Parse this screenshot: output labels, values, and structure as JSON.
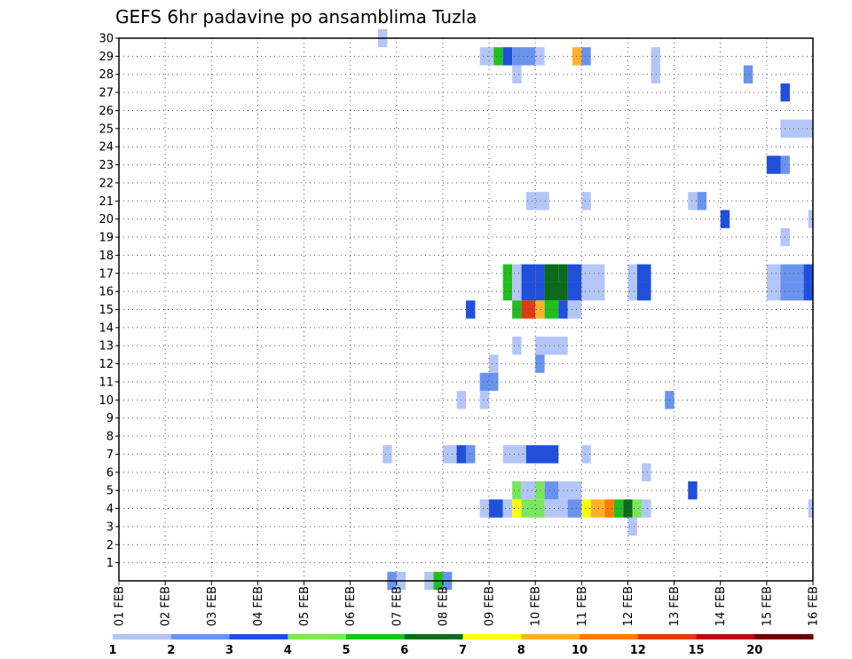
{
  "chart_data": {
    "type": "heatmap",
    "title": "GEFS 6hr padavine po ansamblima Tuzla",
    "xlabel": "",
    "ylabel": "",
    "x_tick_labels": [
      "01 FEB",
      "02 FEB",
      "03 FEB",
      "04 FEB",
      "05 FEB",
      "06 FEB",
      "07 FEB",
      "08 FEB",
      "09 FEB",
      "10 FEB",
      "11 FEB",
      "12 FEB",
      "13 FEB",
      "14 FEB",
      "15 FEB",
      "16 FEB"
    ],
    "x_range_days": [
      1,
      16
    ],
    "y_tick_labels": [
      "1",
      "2",
      "3",
      "4",
      "5",
      "6",
      "7",
      "8",
      "9",
      "10",
      "11",
      "12",
      "13",
      "14",
      "15",
      "16",
      "17",
      "18",
      "19",
      "20",
      "21",
      "22",
      "23",
      "24",
      "25",
      "26",
      "27",
      "28",
      "29",
      "30"
    ],
    "y_range": [
      0,
      30
    ],
    "grid": true,
    "colorbar": {
      "labels": [
        "1",
        "2",
        "3",
        "4",
        "5",
        "6",
        "7",
        "8",
        "10",
        "12",
        "15",
        "20"
      ],
      "colors": [
        "#b3c6f7",
        "#6a93ee",
        "#1f4fdc",
        "#7ae65c",
        "#1fbf1f",
        "#0a6b1a",
        "#ffff00",
        "#ffb12e",
        "#ff7a00",
        "#e03a10",
        "#b20d0d",
        "#6b0000"
      ]
    },
    "cell_duration_hours": 6,
    "cells": [
      {
        "y": 30,
        "t": [
          6.6,
          6.8
        ],
        "c": 0
      },
      {
        "y": 29,
        "t": [
          8.8,
          9.1
        ],
        "c": 0
      },
      {
        "y": 29,
        "t": [
          9.1,
          9.3
        ],
        "c": 4
      },
      {
        "y": 29,
        "t": [
          9.3,
          9.5
        ],
        "c": 2
      },
      {
        "y": 29,
        "t": [
          9.5,
          10.0
        ],
        "c": 1
      },
      {
        "y": 29,
        "t": [
          10.0,
          10.2
        ],
        "c": 0
      },
      {
        "y": 29,
        "t": [
          10.8,
          11.0
        ],
        "c": 7
      },
      {
        "y": 29,
        "t": [
          11.0,
          11.2
        ],
        "c": 1
      },
      {
        "y": 29,
        "t": [
          12.5,
          12.7
        ],
        "c": 0
      },
      {
        "y": 28,
        "t": [
          9.5,
          9.7
        ],
        "c": 0
      },
      {
        "y": 28,
        "t": [
          12.5,
          12.7
        ],
        "c": 0
      },
      {
        "y": 28,
        "t": [
          14.5,
          14.7
        ],
        "c": 1
      },
      {
        "y": 27,
        "t": [
          15.3,
          15.5
        ],
        "c": 2
      },
      {
        "y": 25,
        "t": [
          15.3,
          16.0
        ],
        "c": 0
      },
      {
        "y": 23,
        "t": [
          15.0,
          15.3
        ],
        "c": 2
      },
      {
        "y": 23,
        "t": [
          15.3,
          15.5
        ],
        "c": 1
      },
      {
        "y": 21,
        "t": [
          9.8,
          10.3
        ],
        "c": 0
      },
      {
        "y": 21,
        "t": [
          11.0,
          11.2
        ],
        "c": 0
      },
      {
        "y": 21,
        "t": [
          13.3,
          13.5
        ],
        "c": 0
      },
      {
        "y": 21,
        "t": [
          13.5,
          13.7
        ],
        "c": 1
      },
      {
        "y": 20,
        "t": [
          14.0,
          14.2
        ],
        "c": 2
      },
      {
        "y": 20,
        "t": [
          15.9,
          16.0
        ],
        "c": 0
      },
      {
        "y": 19,
        "t": [
          15.3,
          15.5
        ],
        "c": 0
      },
      {
        "y": 17,
        "t": [
          9.3,
          9.5
        ],
        "c": 4
      },
      {
        "y": 17,
        "t": [
          9.5,
          9.7
        ],
        "c": 0
      },
      {
        "y": 17,
        "t": [
          9.7,
          10.0
        ],
        "c": 2
      },
      {
        "y": 17,
        "t": [
          10.0,
          10.2
        ],
        "c": 2
      },
      {
        "y": 17,
        "t": [
          10.2,
          10.5
        ],
        "c": 5
      },
      {
        "y": 17,
        "t": [
          10.5,
          10.7
        ],
        "c": 5
      },
      {
        "y": 17,
        "t": [
          10.7,
          11.0
        ],
        "c": 2
      },
      {
        "y": 17,
        "t": [
          11.0,
          11.5
        ],
        "c": 0
      },
      {
        "y": 17,
        "t": [
          12.0,
          12.2
        ],
        "c": 0
      },
      {
        "y": 17,
        "t": [
          12.2,
          12.5
        ],
        "c": 2
      },
      {
        "y": 17,
        "t": [
          15.0,
          15.3
        ],
        "c": 0
      },
      {
        "y": 17,
        "t": [
          15.3,
          15.8
        ],
        "c": 1
      },
      {
        "y": 17,
        "t": [
          15.8,
          16.0
        ],
        "c": 2
      },
      {
        "y": 16,
        "t": [
          9.3,
          9.5
        ],
        "c": 4
      },
      {
        "y": 16,
        "t": [
          9.5,
          9.7
        ],
        "c": 0
      },
      {
        "y": 16,
        "t": [
          9.7,
          10.0
        ],
        "c": 2
      },
      {
        "y": 16,
        "t": [
          10.0,
          10.2
        ],
        "c": 2
      },
      {
        "y": 16,
        "t": [
          10.2,
          10.7
        ],
        "c": 5
      },
      {
        "y": 16,
        "t": [
          10.7,
          11.0
        ],
        "c": 2
      },
      {
        "y": 16,
        "t": [
          11.0,
          11.5
        ],
        "c": 0
      },
      {
        "y": 16,
        "t": [
          12.0,
          12.2
        ],
        "c": 0
      },
      {
        "y": 16,
        "t": [
          12.2,
          12.5
        ],
        "c": 2
      },
      {
        "y": 16,
        "t": [
          15.0,
          15.3
        ],
        "c": 0
      },
      {
        "y": 16,
        "t": [
          15.3,
          15.8
        ],
        "c": 1
      },
      {
        "y": 16,
        "t": [
          15.8,
          16.0
        ],
        "c": 2
      },
      {
        "y": 15,
        "t": [
          8.5,
          8.7
        ],
        "c": 2
      },
      {
        "y": 15,
        "t": [
          9.5,
          9.7
        ],
        "c": 4
      },
      {
        "y": 15,
        "t": [
          9.7,
          10.0
        ],
        "c": 9
      },
      {
        "y": 15,
        "t": [
          10.0,
          10.2
        ],
        "c": 7
      },
      {
        "y": 15,
        "t": [
          10.2,
          10.5
        ],
        "c": 4
      },
      {
        "y": 15,
        "t": [
          10.5,
          10.7
        ],
        "c": 2
      },
      {
        "y": 15,
        "t": [
          10.7,
          11.0
        ],
        "c": 0
      },
      {
        "y": 13,
        "t": [
          9.5,
          9.7
        ],
        "c": 0
      },
      {
        "y": 13,
        "t": [
          10.0,
          10.7
        ],
        "c": 0
      },
      {
        "y": 12,
        "t": [
          9.0,
          9.2
        ],
        "c": 0
      },
      {
        "y": 12,
        "t": [
          10.0,
          10.2
        ],
        "c": 1
      },
      {
        "y": 11,
        "t": [
          8.8,
          9.2
        ],
        "c": 1
      },
      {
        "y": 10,
        "t": [
          8.3,
          8.5
        ],
        "c": 0
      },
      {
        "y": 10,
        "t": [
          8.8,
          9.0
        ],
        "c": 0
      },
      {
        "y": 10,
        "t": [
          12.8,
          13.0
        ],
        "c": 1
      },
      {
        "y": 7,
        "t": [
          6.7,
          6.9
        ],
        "c": 0
      },
      {
        "y": 7,
        "t": [
          8.0,
          8.3
        ],
        "c": 0
      },
      {
        "y": 7,
        "t": [
          8.3,
          8.5
        ],
        "c": 2
      },
      {
        "y": 7,
        "t": [
          8.5,
          8.7
        ],
        "c": 1
      },
      {
        "y": 7,
        "t": [
          9.3,
          9.8
        ],
        "c": 0
      },
      {
        "y": 7,
        "t": [
          9.8,
          10.5
        ],
        "c": 2
      },
      {
        "y": 7,
        "t": [
          11.0,
          11.2
        ],
        "c": 0
      },
      {
        "y": 6,
        "t": [
          12.3,
          12.5
        ],
        "c": 0
      },
      {
        "y": 5,
        "t": [
          9.5,
          9.7
        ],
        "c": 3
      },
      {
        "y": 5,
        "t": [
          9.7,
          10.0
        ],
        "c": 0
      },
      {
        "y": 5,
        "t": [
          10.0,
          10.2
        ],
        "c": 3
      },
      {
        "y": 5,
        "t": [
          10.2,
          10.5
        ],
        "c": 1
      },
      {
        "y": 5,
        "t": [
          10.5,
          11.0
        ],
        "c": 0
      },
      {
        "y": 5,
        "t": [
          13.3,
          13.5
        ],
        "c": 2
      },
      {
        "y": 4,
        "t": [
          8.8,
          9.0
        ],
        "c": 0
      },
      {
        "y": 4,
        "t": [
          9.0,
          9.3
        ],
        "c": 2
      },
      {
        "y": 4,
        "t": [
          9.3,
          9.5
        ],
        "c": 0
      },
      {
        "y": 4,
        "t": [
          9.5,
          9.7
        ],
        "c": 6
      },
      {
        "y": 4,
        "t": [
          9.7,
          10.2
        ],
        "c": 3
      },
      {
        "y": 4,
        "t": [
          10.2,
          10.7
        ],
        "c": 0
      },
      {
        "y": 4,
        "t": [
          10.7,
          11.0
        ],
        "c": 1
      },
      {
        "y": 4,
        "t": [
          11.0,
          11.2
        ],
        "c": 6
      },
      {
        "y": 4,
        "t": [
          11.2,
          11.5
        ],
        "c": 7
      },
      {
        "y": 4,
        "t": [
          11.5,
          11.7
        ],
        "c": 8
      },
      {
        "y": 4,
        "t": [
          11.7,
          11.9
        ],
        "c": 4
      },
      {
        "y": 4,
        "t": [
          11.9,
          12.1
        ],
        "c": 5
      },
      {
        "y": 4,
        "t": [
          12.1,
          12.3
        ],
        "c": 3
      },
      {
        "y": 4,
        "t": [
          12.3,
          12.5
        ],
        "c": 0
      },
      {
        "y": 4,
        "t": [
          15.9,
          16.0
        ],
        "c": 0
      },
      {
        "y": 3,
        "t": [
          12.0,
          12.2
        ],
        "c": 0
      },
      {
        "y": 0,
        "t": [
          6.8,
          7.0
        ],
        "c": 1
      },
      {
        "y": 0,
        "t": [
          7.0,
          7.2
        ],
        "c": 0
      },
      {
        "y": 0,
        "t": [
          7.6,
          7.8
        ],
        "c": 0
      },
      {
        "y": 0,
        "t": [
          7.8,
          8.0
        ],
        "c": 4
      },
      {
        "y": 0,
        "t": [
          8.0,
          8.2
        ],
        "c": 1
      }
    ]
  }
}
